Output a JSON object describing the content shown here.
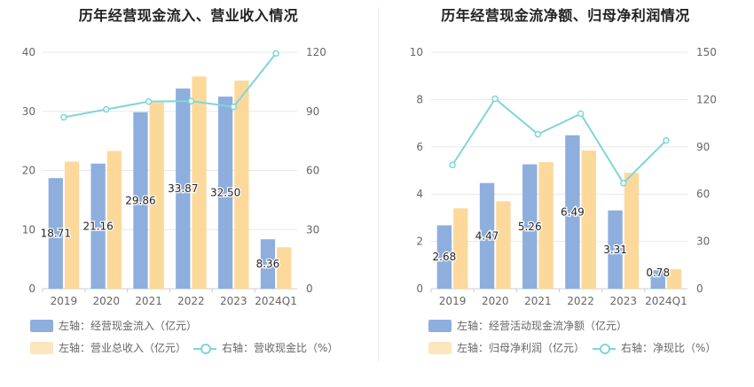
{
  "colors": {
    "bar1": "#8eaedd",
    "bar2": "#fcd99b",
    "line": "#7fd6d8",
    "grid": "#e8e8e8",
    "axis_text": "#666666"
  },
  "chart_data": [
    {
      "type": "bar",
      "title": "历年经营现金流入、营业收入情况",
      "categories": [
        "2019",
        "2020",
        "2021",
        "2022",
        "2023",
        "2024Q1"
      ],
      "yleft": {
        "ticks": [
          0,
          10,
          20,
          30,
          40
        ],
        "ylim": [
          0,
          40
        ]
      },
      "yright": {
        "ticks": [
          0,
          30,
          60,
          90,
          120
        ],
        "ylim": [
          0,
          120
        ]
      },
      "series": [
        {
          "name": "左轴：经营现金流入（亿元）",
          "axis": "left",
          "kind": "bar",
          "values": [
            18.71,
            21.16,
            29.86,
            33.87,
            32.5,
            8.36
          ],
          "labels": [
            "18.71",
            "21.16",
            "29.86",
            "33.87",
            "32.50",
            "8.36"
          ]
        },
        {
          "name": "左轴：营业总收入（亿元）",
          "axis": "left",
          "kind": "bar",
          "values": [
            21.5,
            23.3,
            31.5,
            35.9,
            35.2,
            7.0
          ]
        },
        {
          "name": "右轴：营收现金比（%）",
          "axis": "right",
          "kind": "line",
          "values": [
            87.0,
            91.0,
            95.0,
            95.2,
            92.3,
            119.4
          ]
        }
      ]
    },
    {
      "type": "bar",
      "title": "历年经营现金流净额、归母净利润情况",
      "categories": [
        "2019",
        "2020",
        "2021",
        "2022",
        "2023",
        "2024Q1"
      ],
      "yleft": {
        "ticks": [
          0,
          2,
          4,
          6,
          8,
          10
        ],
        "ylim": [
          0,
          10
        ]
      },
      "yright": {
        "ticks": [
          0,
          30,
          60,
          90,
          120,
          150
        ],
        "ylim": [
          0,
          150
        ]
      },
      "series": [
        {
          "name": "左轴：经营活动现金流净额（亿元）",
          "axis": "left",
          "kind": "bar",
          "values": [
            2.68,
            4.47,
            5.26,
            6.49,
            3.31,
            0.78
          ],
          "labels": [
            "2.68",
            "4.47",
            "5.26",
            "6.49",
            "3.31",
            "0.78"
          ]
        },
        {
          "name": "左轴：归母净利润（亿元）",
          "axis": "left",
          "kind": "bar",
          "values": [
            3.4,
            3.7,
            5.35,
            5.85,
            4.9,
            0.83
          ]
        },
        {
          "name": "右轴：净现比（%）",
          "axis": "right",
          "kind": "line",
          "values": [
            78.5,
            120.5,
            98.0,
            111.0,
            67.0,
            94.0
          ]
        }
      ]
    }
  ]
}
